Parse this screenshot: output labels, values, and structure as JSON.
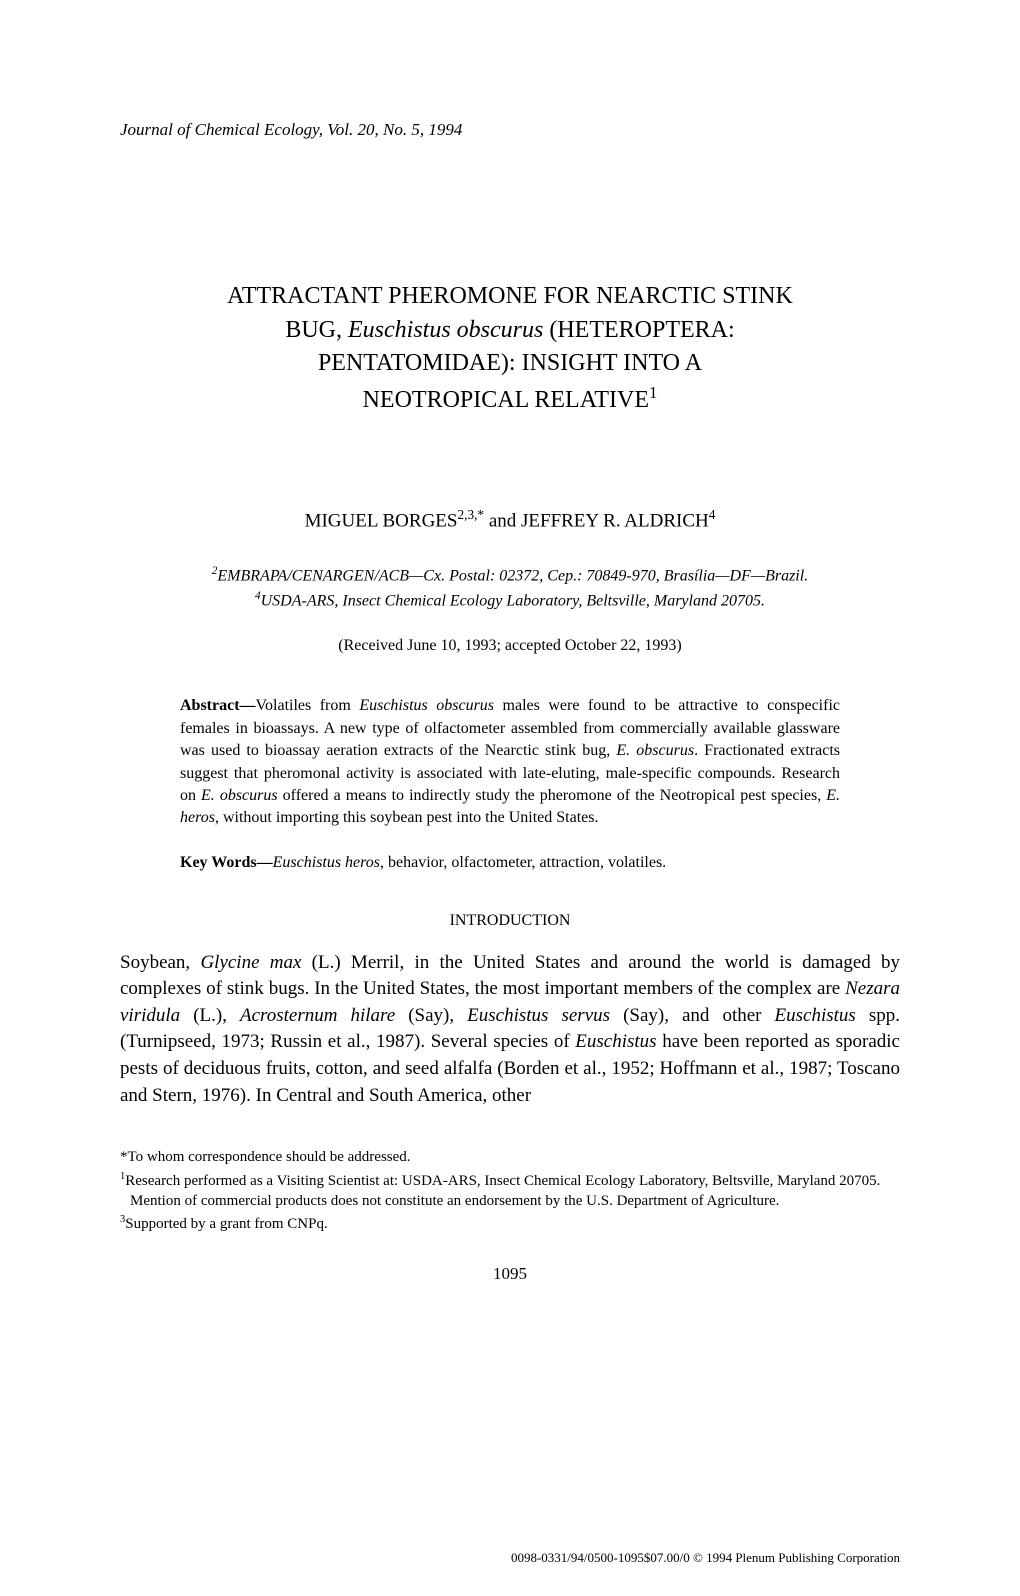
{
  "journal_header": {
    "name": "Journal of Chemical Ecology",
    "volume": "Vol. 20, No. 5, 1994"
  },
  "title": {
    "line1": "ATTRACTANT PHEROMONE FOR NEARCTIC STINK",
    "line2a": "BUG, ",
    "line2_species": "Euschistus obscurus",
    "line2b": " (HETEROPTERA:",
    "line3": "PENTATOMIDAE): INSIGHT INTO A",
    "line4": "NEOTROPICAL RELATIVE",
    "sup": "1"
  },
  "authors": {
    "author1": "MIGUEL BORGES",
    "author1_sup": "2,3,*",
    "sep": " and ",
    "author2": "JEFFREY R. ALDRICH",
    "author2_sup": "4"
  },
  "affiliations": {
    "aff2_sup": "2",
    "aff2": "EMBRAPA/CENARGEN/ACB—Cx. Postal: 02372, Cep.: 70849-970, Brasília—DF—Brazil.",
    "aff4_sup": "4",
    "aff4": "USDA-ARS, Insect Chemical Ecology Laboratory, Beltsville, Maryland 20705."
  },
  "dates": "(Received June 10, 1993; accepted October 22, 1993)",
  "abstract": {
    "label": "Abstract—",
    "t1": "Volatiles from ",
    "s1": "Euschistus obscurus",
    "t2": " males were found to be attractive to conspecific females in bioassays. A new type of olfactometer assembled from commercially available glassware was used to bioassay aeration extracts of the Nearctic stink bug, ",
    "s2": "E. obscurus",
    "t3": ". Fractionated extracts suggest that pheromonal activity is associated with late-eluting, male-specific compounds. Research on ",
    "s3": "E. obscurus",
    "t4": " offered a means to indirectly study the pheromone of the Neotropical pest species, ",
    "s4": "E. heros",
    "t5": ", without importing this soybean pest into the United States."
  },
  "keywords": {
    "label": "Key Words—",
    "species": "Euschistus heros",
    "rest": ", behavior, olfactometer, attraction, volatiles."
  },
  "section_heading": "INTRODUCTION",
  "body": {
    "t1": "Soybean, ",
    "s1": "Glycine max",
    "t2": " (L.) Merril, in the United States and around the world is damaged by complexes of stink bugs. In the United States, the most important members of the complex are ",
    "s2": "Nezara viridula",
    "t3": " (L.), ",
    "s3": "Acrosternum hilare",
    "t4": " (Say), ",
    "s4": "Euschistus servus",
    "t5": " (Say), and other ",
    "s5": "Euschistus",
    "t6": " spp. (Turnipseed, 1973; Russin et al., 1987). Several species of ",
    "s6": "Euschistus",
    "t7": " have been reported as sporadic pests of deciduous fruits, cotton, and seed alfalfa (Borden et al., 1952; Hoffmann et al., 1987; Toscano and Stern, 1976). In Central and South America, other"
  },
  "footnotes": {
    "star": "*To whom correspondence should be addressed.",
    "n1_sup": "1",
    "n1": "Research performed as a Visiting Scientist at: USDA-ARS, Insect Chemical Ecology Laboratory, Beltsville, Maryland 20705. Mention of commercial products does not constitute an endorsement by the U.S. Department of Agriculture.",
    "n3_sup": "3",
    "n3": "Supported by a grant from CNPq."
  },
  "page_number": "1095",
  "copyright": "0098-0331/94/0500-1095$07.00/0 © 1994 Plenum Publishing Corporation"
}
